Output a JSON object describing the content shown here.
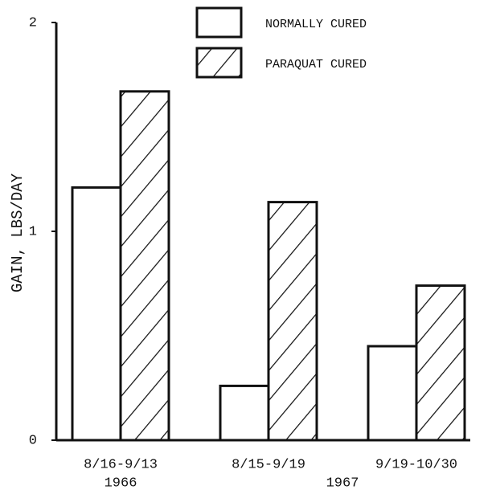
{
  "chart_data": {
    "type": "bar",
    "ylabel": "GAIN, LBS/DAY",
    "categories": [
      "8/16-9/13",
      "8/15-9/19",
      "9/19-10/30"
    ],
    "groups": [
      {
        "label": "1966",
        "span": 1
      },
      {
        "label": "1967",
        "span": 2
      }
    ],
    "series": [
      {
        "name": "NORMALLY CURED",
        "color": "#ffffff",
        "hatch": false,
        "values": [
          1.21,
          0.26,
          0.45
        ]
      },
      {
        "name": "PARAQUAT CURED",
        "color": "#ffffff",
        "hatch": true,
        "values": [
          1.67,
          1.14,
          0.74
        ]
      }
    ],
    "ylim": [
      0,
      2
    ],
    "yticks": [
      0,
      1,
      2
    ],
    "legend": "top-right",
    "grid": false
  }
}
